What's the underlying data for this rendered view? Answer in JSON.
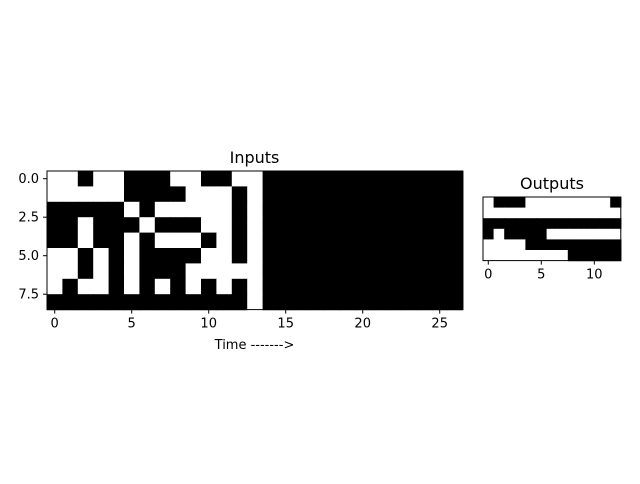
{
  "chart_data": [
    {
      "type": "heatmap",
      "title": "Inputs",
      "xlabel": "Time ------->",
      "ylabel": "",
      "x_ticks": [
        "0",
        "5",
        "10",
        "15",
        "20",
        "25"
      ],
      "y_ticks": [
        "0.0",
        "2.5",
        "5.0",
        "7.5"
      ],
      "x_range": [
        -0.5,
        26.5
      ],
      "y_range": [
        -0.5,
        8.5
      ],
      "colormap": "gray",
      "cell_colors": {
        "0": "#ffffff",
        "1": "#000000"
      },
      "matrix": [
        [
          0,
          0,
          1,
          0,
          0,
          1,
          1,
          1,
          0,
          0,
          1,
          1,
          0,
          0,
          1,
          1,
          1,
          1,
          1,
          1,
          1,
          1,
          1,
          1,
          1,
          1,
          1
        ],
        [
          0,
          0,
          0,
          0,
          0,
          1,
          1,
          1,
          1,
          0,
          0,
          0,
          1,
          0,
          1,
          1,
          1,
          1,
          1,
          1,
          1,
          1,
          1,
          1,
          1,
          1,
          1
        ],
        [
          1,
          1,
          1,
          1,
          1,
          0,
          1,
          0,
          0,
          0,
          0,
          0,
          1,
          0,
          1,
          1,
          1,
          1,
          1,
          1,
          1,
          1,
          1,
          1,
          1,
          1,
          1
        ],
        [
          1,
          1,
          0,
          1,
          1,
          1,
          0,
          1,
          1,
          1,
          0,
          0,
          1,
          0,
          1,
          1,
          1,
          1,
          1,
          1,
          1,
          1,
          1,
          1,
          1,
          1,
          1
        ],
        [
          1,
          1,
          0,
          1,
          1,
          0,
          1,
          0,
          0,
          0,
          1,
          0,
          1,
          0,
          1,
          1,
          1,
          1,
          1,
          1,
          1,
          1,
          1,
          1,
          1,
          1,
          1
        ],
        [
          0,
          0,
          1,
          0,
          1,
          0,
          1,
          1,
          1,
          1,
          0,
          0,
          1,
          0,
          1,
          1,
          1,
          1,
          1,
          1,
          1,
          1,
          1,
          1,
          1,
          1,
          1
        ],
        [
          0,
          0,
          1,
          0,
          1,
          0,
          1,
          1,
          1,
          0,
          0,
          0,
          0,
          0,
          1,
          1,
          1,
          1,
          1,
          1,
          1,
          1,
          1,
          1,
          1,
          1,
          1
        ],
        [
          0,
          1,
          0,
          0,
          1,
          0,
          1,
          0,
          1,
          0,
          1,
          0,
          1,
          0,
          1,
          1,
          1,
          1,
          1,
          1,
          1,
          1,
          1,
          1,
          1,
          1,
          1
        ],
        [
          1,
          1,
          1,
          1,
          1,
          1,
          1,
          1,
          1,
          1,
          1,
          1,
          1,
          0,
          1,
          1,
          1,
          1,
          1,
          1,
          1,
          1,
          1,
          1,
          1,
          1,
          1
        ]
      ]
    },
    {
      "type": "heatmap",
      "title": "Outputs",
      "xlabel": "",
      "ylabel": "",
      "x_ticks": [
        "0",
        "5",
        "10"
      ],
      "y_ticks": [],
      "x_range": [
        -0.5,
        12.5
      ],
      "y_range": [
        -0.5,
        5.5
      ],
      "colormap": "gray",
      "cell_colors": {
        "0": "#ffffff",
        "1": "#000000"
      },
      "matrix": [
        [
          0,
          1,
          1,
          1,
          0,
          0,
          0,
          0,
          0,
          0,
          0,
          0,
          1
        ],
        [
          0,
          0,
          0,
          0,
          0,
          0,
          0,
          0,
          0,
          0,
          0,
          0,
          0
        ],
        [
          1,
          1,
          1,
          1,
          1,
          1,
          1,
          1,
          1,
          1,
          1,
          1,
          1
        ],
        [
          1,
          0,
          1,
          1,
          1,
          1,
          0,
          0,
          0,
          0,
          0,
          0,
          0
        ],
        [
          0,
          0,
          0,
          0,
          1,
          1,
          1,
          1,
          1,
          1,
          1,
          1,
          1
        ],
        [
          0,
          0,
          0,
          0,
          0,
          0,
          0,
          0,
          1,
          1,
          1,
          1,
          1
        ]
      ]
    }
  ]
}
